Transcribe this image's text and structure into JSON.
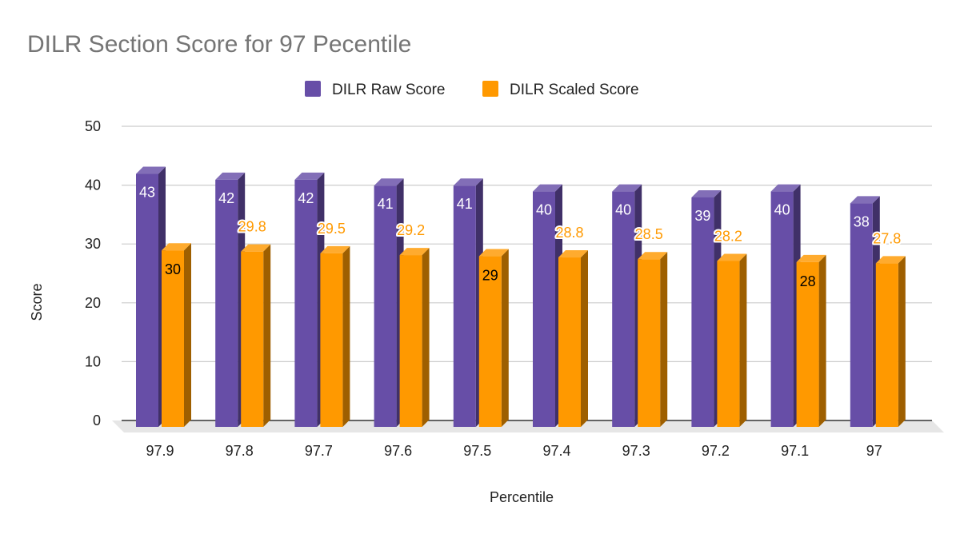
{
  "chart_data": {
    "type": "bar",
    "style": "3d-column",
    "title": "DILR Section Score for 97 Pecentile",
    "xlabel": "Percentile",
    "ylabel": "Score",
    "ylim": [
      0,
      50
    ],
    "yticks": [
      "0",
      "10",
      "20",
      "30",
      "40",
      "50"
    ],
    "grid": true,
    "legend_position": "top",
    "categories": [
      "97.9",
      "97.8",
      "97.7",
      "97.6",
      "97.5",
      "97.4",
      "97.3",
      "97.2",
      "97.1",
      "97"
    ],
    "series": [
      {
        "name": "DILR Raw Score",
        "color": "#674ea7",
        "values": [
          43,
          42,
          42,
          41,
          41,
          40,
          40,
          39,
          40,
          38
        ]
      },
      {
        "name": "DILR Scaled Score",
        "color": "#ff9900",
        "values": [
          30,
          29.8,
          29.5,
          29.2,
          29,
          28.8,
          28.5,
          28.2,
          28,
          27.8
        ]
      }
    ]
  }
}
